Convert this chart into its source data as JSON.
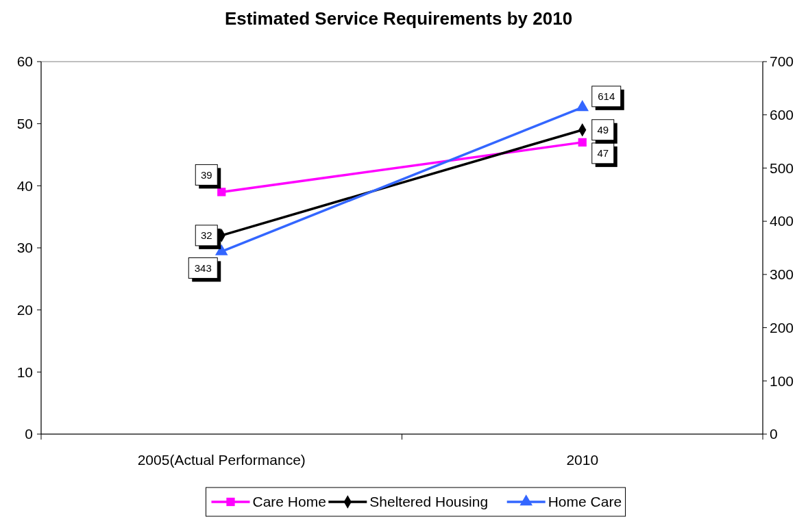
{
  "chart_data": {
    "type": "line",
    "title": "Estimated Service Requirements by 2010",
    "categories": [
      "2005(Actual Performance)",
      "2010"
    ],
    "series": [
      {
        "name": "Care Home",
        "color": "#ff00ff",
        "values": [
          39,
          47
        ],
        "marker": "square"
      },
      {
        "name": "Sheltered Housing",
        "color": "#000000",
        "values": [
          32,
          49
        ],
        "marker": "diamond"
      },
      {
        "name": "Home Care",
        "color": "#3366ff",
        "values": [
          343,
          614
        ],
        "marker": "triangle",
        "axis": "y2"
      }
    ],
    "ylim": [
      0,
      60
    ],
    "yticks": [
      0,
      10,
      20,
      30,
      40,
      50,
      60
    ],
    "y2lim": [
      0,
      700
    ],
    "y2ticks": [
      0,
      100,
      200,
      300,
      400,
      500,
      600,
      700
    ],
    "data_labels": true,
    "grid": false,
    "legend": "bottom"
  }
}
